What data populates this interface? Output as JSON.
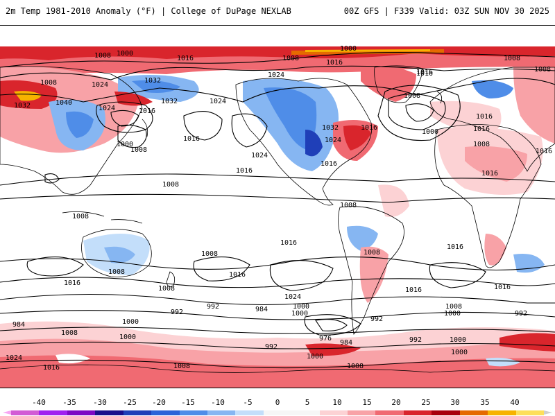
{
  "header": {
    "title_left": "2m Temp 1981-2010 Anomaly (°F) | College of DuPage NEXLAB",
    "title_right": "00Z GFS | F339 Valid: 03Z SUN NOV 30 2025"
  },
  "map": {
    "isobar_labels": [
      {
        "text": "1008"
      },
      {
        "text": "1000"
      },
      {
        "text": "1016"
      },
      {
        "text": "1008"
      },
      {
        "text": "1000"
      },
      {
        "text": "1016"
      },
      {
        "text": "1008"
      },
      {
        "text": "1008"
      },
      {
        "text": "1024"
      },
      {
        "text": "1032"
      },
      {
        "text": "1024"
      },
      {
        "text": "1016"
      },
      {
        "text": "1008"
      },
      {
        "text": "1032"
      },
      {
        "text": "1040"
      },
      {
        "text": "1024"
      },
      {
        "text": "1016"
      },
      {
        "text": "1032"
      },
      {
        "text": "1024"
      },
      {
        "text": "1000"
      },
      {
        "text": "1008"
      },
      {
        "text": "1016"
      },
      {
        "text": "1024"
      },
      {
        "text": "1016"
      },
      {
        "text": "1008"
      },
      {
        "text": "1016"
      },
      {
        "text": "1000"
      },
      {
        "text": "1016"
      },
      {
        "text": "1016"
      },
      {
        "text": "1024"
      },
      {
        "text": "1032"
      },
      {
        "text": "1016"
      },
      {
        "text": "1016"
      },
      {
        "text": "1016"
      },
      {
        "text": "1008"
      },
      {
        "text": "1016"
      },
      {
        "text": "1008"
      },
      {
        "text": "1008"
      },
      {
        "text": "1008"
      },
      {
        "text": "1008"
      },
      {
        "text": "1016"
      },
      {
        "text": "1016"
      },
      {
        "text": "1008"
      },
      {
        "text": "1016"
      },
      {
        "text": "1016"
      },
      {
        "text": "1008"
      },
      {
        "text": "1016"
      },
      {
        "text": "1024"
      },
      {
        "text": "1016"
      },
      {
        "text": "1008"
      },
      {
        "text": "1000"
      },
      {
        "text": "992"
      },
      {
        "text": "984"
      },
      {
        "text": "1000"
      },
      {
        "text": "1000"
      },
      {
        "text": "992"
      },
      {
        "text": "984"
      },
      {
        "text": "1000"
      },
      {
        "text": "976"
      },
      {
        "text": "984"
      },
      {
        "text": "992"
      },
      {
        "text": "992"
      },
      {
        "text": "1000"
      },
      {
        "text": "1008"
      },
      {
        "text": "1000"
      },
      {
        "text": "1008"
      },
      {
        "text": "1024"
      },
      {
        "text": "1016"
      },
      {
        "text": "1008"
      },
      {
        "text": "1000"
      },
      {
        "text": "992"
      },
      {
        "text": "1008"
      },
      {
        "text": "1000"
      },
      {
        "text": "992"
      }
    ]
  },
  "legend": {
    "unit": "°F",
    "tick_labels": [
      "-40",
      "-35",
      "-30",
      "-25",
      "-20",
      "-15",
      "-10",
      "-5",
      "0",
      "5",
      "10",
      "15",
      "20",
      "25",
      "30",
      "35",
      "40"
    ],
    "colors": [
      "#d25bd5",
      "#a020f0",
      "#7d09c4",
      "#190e8c",
      "#1f3fb8",
      "#2c63d8",
      "#4f8de8",
      "#86b6f2",
      "#c3defa",
      "#ffffff",
      "#ffffff",
      "#fcd2d4",
      "#f8a2a7",
      "#f06a72",
      "#d9252c",
      "#a8000c",
      "#e56a00",
      "#f7b300",
      "#fddf5a"
    ]
  }
}
